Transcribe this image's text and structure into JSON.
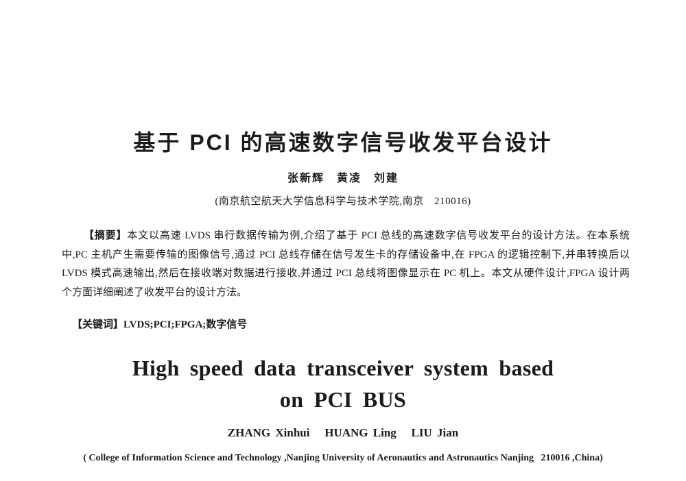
{
  "page": {
    "background": "#ffffff",
    "text_color": "#1b1b1b"
  },
  "chinese": {
    "title": "基于 PCI 的高速数字信号收发平台设计",
    "authors": "张新辉　黄凌　刘建",
    "affiliation": "(南京航空航天大学信息科学与技术学院,南京　210016)"
  },
  "abstract": {
    "label": "【摘要】",
    "line1": "本文以高速 LVDS 串行数据传输为例,介绍了基于 PCI 总线的高速数字信号收发平台的设计方法。在本系统",
    "line2": "中,PC 主机产生需要传输的图像信号,通过 PCI 总线存储在信号发生卡的存储设备中,在 FPGA 的逻辑控制下,并串转换后以",
    "line3": "LVDS 模式高速输出,然后在接收端对数据进行接收,并通过 PCI 总线将图像显示在 PC 机上。本文从硬件设计,FPGA 设计两",
    "line4": "个方面详细阐述了收发平台的设计方法。"
  },
  "keywords": {
    "label": "【关键词】",
    "text": "LVDS;PCI;FPGA;数字信号"
  },
  "english": {
    "title_line1": "High speed data transceiver system based",
    "title_line2": "on PCI BUS",
    "authors": "ZHANG Xinhui   HUANG Ling   LIU Jian",
    "affiliation": "( College of Information Science and Technology ,Nanjing University of Aeronautics and Astronautics Nanjing   210016 ,China)"
  }
}
